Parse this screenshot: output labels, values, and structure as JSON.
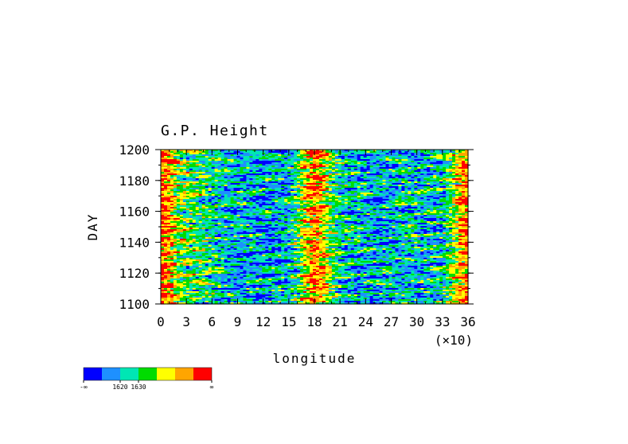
{
  "chart_data": {
    "type": "heatmap",
    "title": "G.P. Height",
    "xlabel": "longitude",
    "ylabel": "DAY",
    "x_ticks": [
      "0",
      "3",
      "6",
      "9",
      "12",
      "15",
      "18",
      "21",
      "24",
      "27",
      "30",
      "33",
      "36"
    ],
    "x_multiplier_label": "(×10)",
    "y_ticks": [
      "1100",
      "1120",
      "1140",
      "1160",
      "1180",
      "1200"
    ],
    "xlim": [
      0,
      36
    ],
    "ylim": [
      1100,
      1200
    ],
    "x_unit_scale": 10,
    "colorbar": {
      "colors": [
        "#0000ff",
        "#1e90ff",
        "#00e6b4",
        "#00dc00",
        "#ffff00",
        "#ffa500",
        "#ff0000"
      ],
      "labels": [
        "-∞",
        "1620",
        "1630",
        "∞"
      ],
      "label_after_bins": [
        0,
        2,
        3,
        7
      ]
    },
    "approx_field_by_longitude_x10": {
      "x": [
        0,
        1,
        2,
        3,
        5,
        7,
        9,
        11,
        13,
        15,
        16,
        17,
        18,
        19,
        20,
        21,
        23,
        25,
        27,
        29,
        31,
        33,
        34,
        35,
        36
      ],
      "mean_level": [
        5.6,
        5.0,
        3.4,
        3.0,
        2.6,
        1.8,
        1.4,
        1.4,
        1.2,
        1.6,
        2.6,
        4.2,
        5.2,
        4.4,
        3.0,
        2.0,
        1.6,
        1.4,
        1.6,
        1.8,
        1.6,
        2.0,
        3.0,
        4.6,
        5.4
      ]
    }
  }
}
